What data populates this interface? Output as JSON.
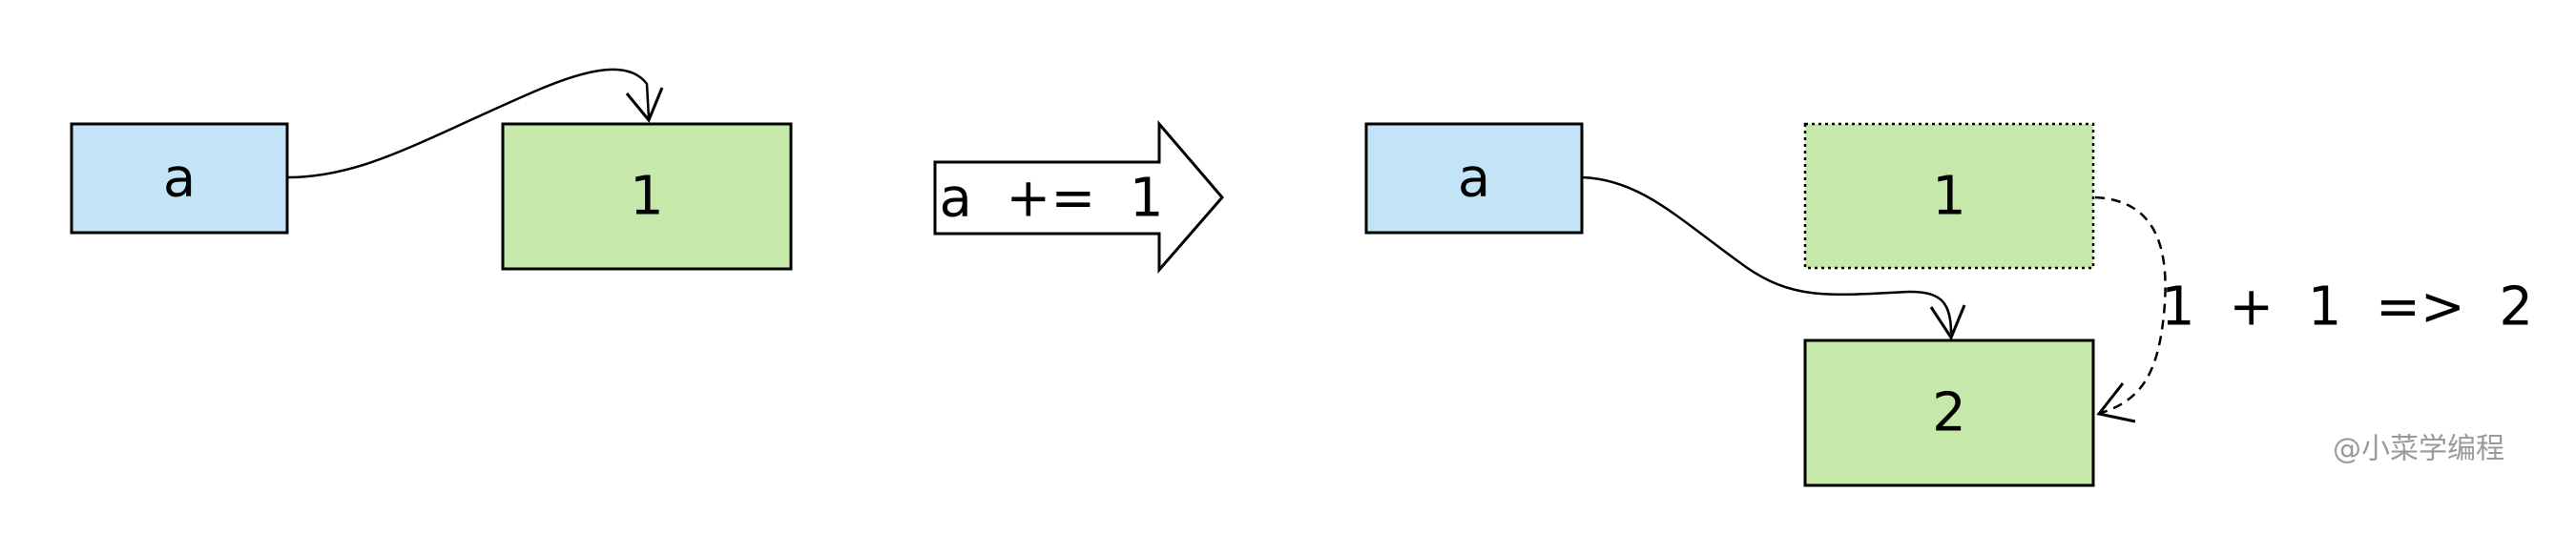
{
  "before": {
    "variable_label": "a",
    "value_label": "1"
  },
  "operation": {
    "label": "a  +=  1"
  },
  "after": {
    "variable_label": "a",
    "old_value_label": "1",
    "new_value_label": "2",
    "computation_label": "1  +  1  =>  2"
  },
  "watermark": "@小菜学编程",
  "colors": {
    "variable_fill": "#c2e4f6",
    "value_fill": "#c6e8ab",
    "stroke": "#000000",
    "watermark": "#9a9a9a"
  }
}
